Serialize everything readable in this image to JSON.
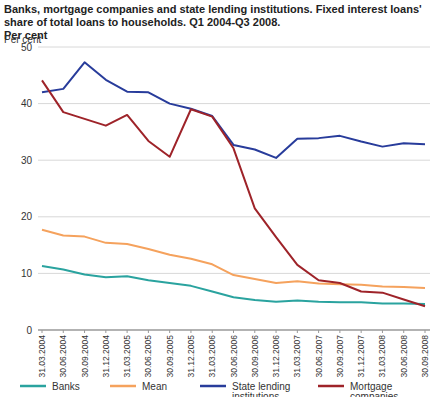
{
  "chart_data": {
    "type": "line",
    "title": "Banks, mortgage companies and state lending institutions. Fixed interest loans' share of total loans to households. Q1 2004-Q3 2008.",
    "subtitle": "Per cent",
    "y_label": "Per cent",
    "categories": [
      "31.03.2004",
      "30.06.2004",
      "30.09.2004",
      "31.12.2004",
      "31.03.2005",
      "30.06.2005",
      "30.09.2005",
      "31.12.2005",
      "31.03.2006",
      "30.06.2006",
      "30.09.2006",
      "31.12.2006",
      "31.03.2007",
      "30.06.2007",
      "30.09.2007",
      "31.12.2007",
      "31.03.2008",
      "30.06.2008",
      "30.09.2008"
    ],
    "series": [
      {
        "name": "Banks",
        "color": "#2aa39f",
        "values": [
          11.3,
          10.7,
          9.8,
          9.3,
          9.5,
          8.8,
          8.3,
          7.8,
          6.8,
          5.8,
          5.3,
          5.0,
          5.2,
          5.0,
          4.9,
          4.9,
          4.7,
          4.7,
          4.6
        ]
      },
      {
        "name": "Mean",
        "color": "#f5a25d",
        "values": [
          17.7,
          16.7,
          16.5,
          15.4,
          15.2,
          14.3,
          13.3,
          12.6,
          11.6,
          9.7,
          9.0,
          8.3,
          8.6,
          8.2,
          8.1,
          8.0,
          7.7,
          7.6,
          7.4
        ]
      },
      {
        "name": "State lending institutions",
        "color": "#283c9b",
        "values": [
          42.0,
          42.6,
          47.3,
          44.2,
          42.1,
          42.0,
          40.0,
          39.1,
          37.8,
          32.7,
          31.9,
          30.4,
          33.8,
          33.9,
          34.3,
          33.3,
          32.4,
          33.0,
          32.8
        ]
      },
      {
        "name": "Mortgage companies",
        "color": "#9e2329",
        "values": [
          44.1,
          38.5,
          37.3,
          36.1,
          38.0,
          33.4,
          30.6,
          39.0,
          37.7,
          32.1,
          21.5,
          16.4,
          11.5,
          8.8,
          8.3,
          6.8,
          6.6,
          5.4,
          4.2
        ]
      }
    ],
    "ylim": [
      0,
      50
    ],
    "yticks": [
      0,
      10,
      20,
      30,
      40,
      50
    ],
    "grid": true,
    "legend": "bottom"
  }
}
